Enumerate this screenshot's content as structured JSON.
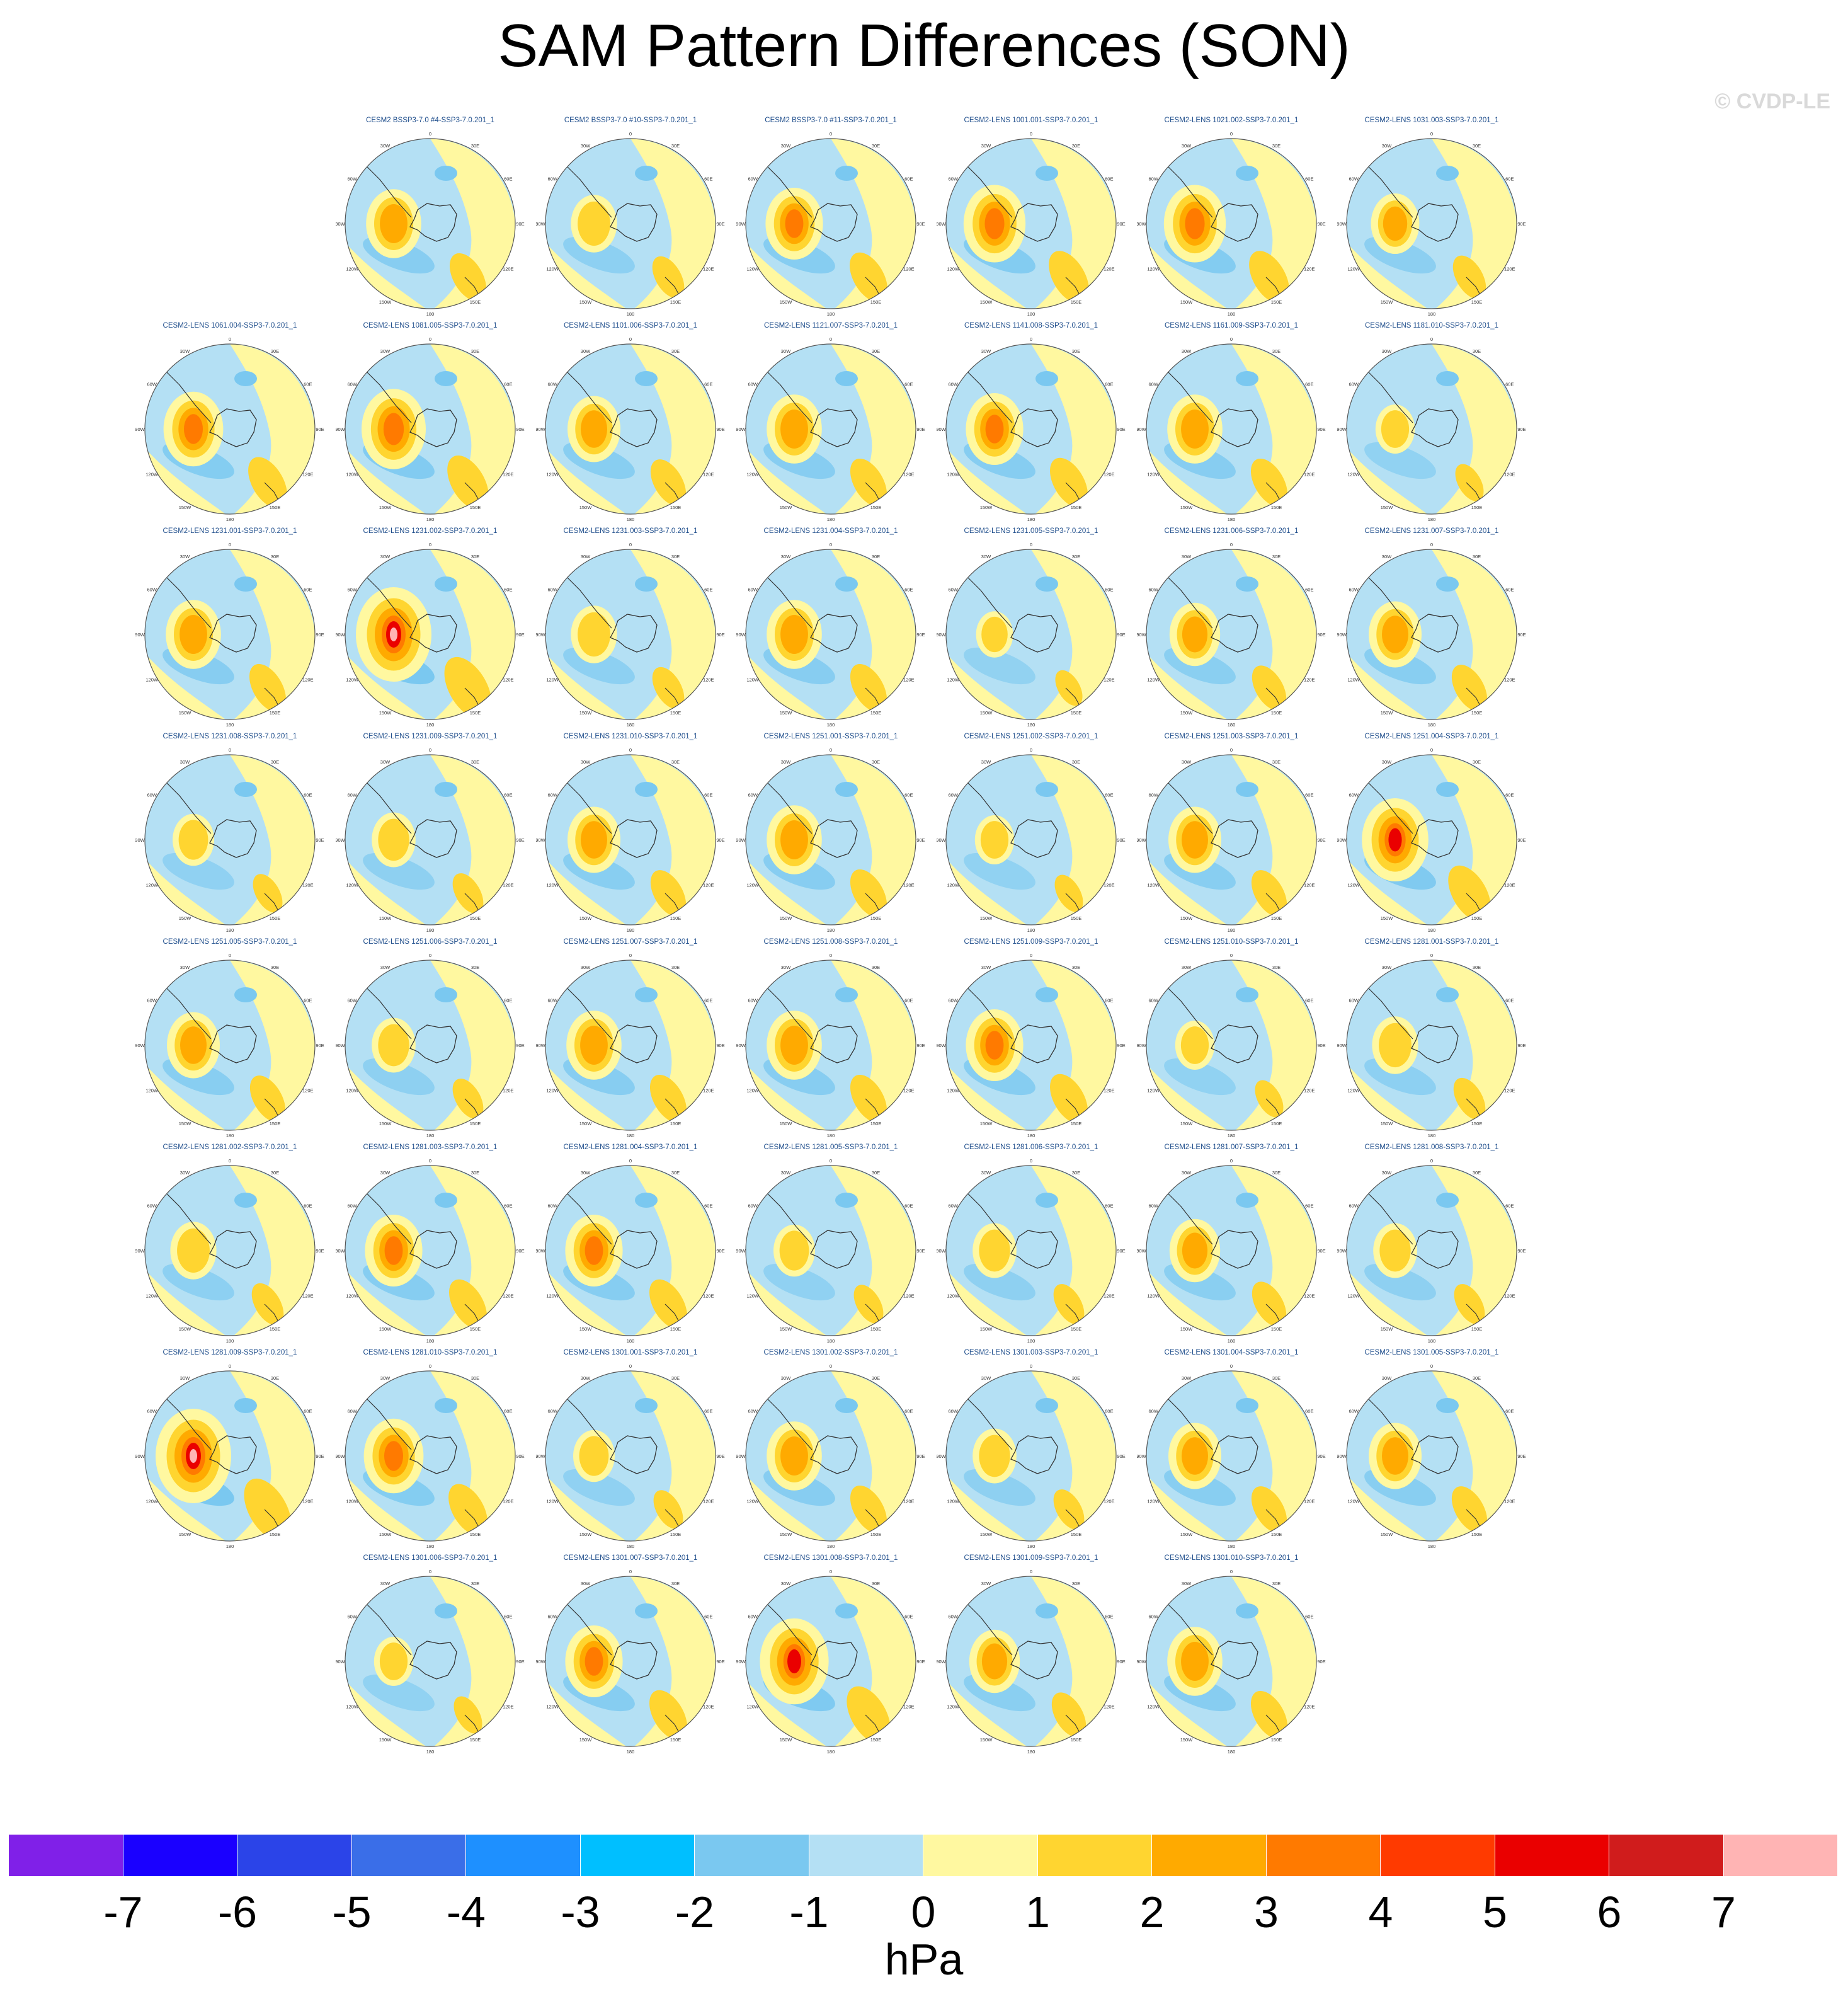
{
  "title": "SAM Pattern Differences (SON)",
  "watermark": "© CVDP-LE",
  "map_lon_labels": [
    "0",
    "30E",
    "60E",
    "90E",
    "120E",
    "150E",
    "180",
    "150W",
    "120W",
    "90W",
    "60W",
    "30W"
  ],
  "panels": [
    {
      "label": "CESM2 BSSP3-7.0 #4-SSP3-7.0.201_1",
      "intensity": 0.55
    },
    {
      "label": "CESM2 BSSP3-7.0 #10-SSP3-7.0.201_1",
      "intensity": 0.35
    },
    {
      "label": "CESM2 BSSP3-7.0 #11-SSP3-7.0.201_1",
      "intensity": 0.6
    },
    {
      "label": "CESM2-LENS 1001.001-SSP3-7.0.201_1",
      "intensity": 0.7
    },
    {
      "label": "CESM2-LENS 1021.002-SSP3-7.0.201_1",
      "intensity": 0.7
    },
    {
      "label": "CESM2-LENS 1031.003-SSP3-7.0.201_1",
      "intensity": 0.4
    },
    {
      "label": "CESM2-LENS 1061.004-SSP3-7.0.201_1",
      "intensity": 0.65
    },
    {
      "label": "CESM2-LENS 1081.005-SSP3-7.0.201_1",
      "intensity": 0.75
    },
    {
      "label": "CESM2-LENS 1101.006-SSP3-7.0.201_1",
      "intensity": 0.5
    },
    {
      "label": "CESM2-LENS 1121.007-SSP3-7.0.201_1",
      "intensity": 0.55
    },
    {
      "label": "CESM2-LENS 1141.008-SSP3-7.0.201_1",
      "intensity": 0.6
    },
    {
      "label": "CESM2-LENS 1161.009-SSP3-7.0.201_1",
      "intensity": 0.55
    },
    {
      "label": "CESM2-LENS 1181.010-SSP3-7.0.201_1",
      "intensity": 0.2
    },
    {
      "label": "CESM2-LENS 1231.001-SSP3-7.0.201_1",
      "intensity": 0.55
    },
    {
      "label": "CESM2-LENS 1231.002-SSP3-7.0.201_1",
      "intensity": 1.0
    },
    {
      "label": "CESM2-LENS 1231.003-SSP3-7.0.201_1",
      "intensity": 0.35
    },
    {
      "label": "CESM2-LENS 1231.004-SSP3-7.0.201_1",
      "intensity": 0.55
    },
    {
      "label": "CESM2-LENS 1231.005-SSP3-7.0.201_1",
      "intensity": 0.15
    },
    {
      "label": "CESM2-LENS 1231.006-SSP3-7.0.201_1",
      "intensity": 0.45
    },
    {
      "label": "CESM2-LENS 1231.007-SSP3-7.0.201_1",
      "intensity": 0.5
    },
    {
      "label": "CESM2-LENS 1231.008-SSP3-7.0.201_1",
      "intensity": 0.25
    },
    {
      "label": "CESM2-LENS 1231.009-SSP3-7.0.201_1",
      "intensity": 0.3
    },
    {
      "label": "CESM2-LENS 1231.010-SSP3-7.0.201_1",
      "intensity": 0.5
    },
    {
      "label": "CESM2-LENS 1251.001-SSP3-7.0.201_1",
      "intensity": 0.55
    },
    {
      "label": "CESM2-LENS 1251.002-SSP3-7.0.201_1",
      "intensity": 0.2
    },
    {
      "label": "CESM2-LENS 1251.003-SSP3-7.0.201_1",
      "intensity": 0.5
    },
    {
      "label": "CESM2-LENS 1251.004-SSP3-7.0.201_1",
      "intensity": 0.8
    },
    {
      "label": "CESM2-LENS 1251.005-SSP3-7.0.201_1",
      "intensity": 0.5
    },
    {
      "label": "CESM2-LENS 1251.006-SSP3-7.0.201_1",
      "intensity": 0.3
    },
    {
      "label": "CESM2-LENS 1251.007-SSP3-7.0.201_1",
      "intensity": 0.55
    },
    {
      "label": "CESM2-LENS 1251.008-SSP3-7.0.201_1",
      "intensity": 0.55
    },
    {
      "label": "CESM2-LENS 1251.009-SSP3-7.0.201_1",
      "intensity": 0.6
    },
    {
      "label": "CESM2-LENS 1251.010-SSP3-7.0.201_1",
      "intensity": 0.2
    },
    {
      "label": "CESM2-LENS 1281.001-SSP3-7.0.201_1",
      "intensity": 0.35
    },
    {
      "label": "CESM2-LENS 1281.002-SSP3-7.0.201_1",
      "intensity": 0.35
    },
    {
      "label": "CESM2-LENS 1281.003-SSP3-7.0.201_1",
      "intensity": 0.6
    },
    {
      "label": "CESM2-LENS 1281.004-SSP3-7.0.201_1",
      "intensity": 0.6
    },
    {
      "label": "CESM2-LENS 1281.005-SSP3-7.0.201_1",
      "intensity": 0.25
    },
    {
      "label": "CESM2-LENS 1281.006-SSP3-7.0.201_1",
      "intensity": 0.3
    },
    {
      "label": "CESM2-LENS 1281.007-SSP3-7.0.201_1",
      "intensity": 0.45
    },
    {
      "label": "CESM2-LENS 1281.008-SSP3-7.0.201_1",
      "intensity": 0.3
    },
    {
      "label": "CESM2-LENS 1281.009-SSP3-7.0.201_1",
      "intensity": 1.0
    },
    {
      "label": "CESM2-LENS 1281.010-SSP3-7.0.201_1",
      "intensity": 0.65
    },
    {
      "label": "CESM2-LENS 1301.001-SSP3-7.0.201_1",
      "intensity": 0.25
    },
    {
      "label": "CESM2-LENS 1301.002-SSP3-7.0.201_1",
      "intensity": 0.55
    },
    {
      "label": "CESM2-LENS 1301.003-SSP3-7.0.201_1",
      "intensity": 0.3
    },
    {
      "label": "CESM2-LENS 1301.004-SSP3-7.0.201_1",
      "intensity": 0.5
    },
    {
      "label": "CESM2-LENS 1301.005-SSP3-7.0.201_1",
      "intensity": 0.5
    },
    {
      "label": "CESM2-LENS 1301.006-SSP3-7.0.201_1",
      "intensity": 0.2
    },
    {
      "label": "CESM2-LENS 1301.007-SSP3-7.0.201_1",
      "intensity": 0.6
    },
    {
      "label": "CESM2-LENS 1301.008-SSP3-7.0.201_1",
      "intensity": 0.85
    },
    {
      "label": "CESM2-LENS 1301.009-SSP3-7.0.201_1",
      "intensity": 0.45
    },
    {
      "label": "CESM2-LENS 1301.010-SSP3-7.0.201_1",
      "intensity": 0.55
    }
  ],
  "colorbar": {
    "units": "hPa",
    "colors": [
      "#8020e8",
      "#1a00ff",
      "#2b44e8",
      "#3a6ee8",
      "#1e90ff",
      "#00bfff",
      "#7ac8f0",
      "#b4e0f4",
      "#fff8a0",
      "#ffd530",
      "#ffaa00",
      "#ff7a00",
      "#ff3a00",
      "#ea0000",
      "#d01c1c",
      "#ffb4b4"
    ],
    "tick_labels": [
      "-7",
      "-6",
      "-5",
      "-4",
      "-3",
      "-2",
      "-1",
      "0",
      "1",
      "2",
      "3",
      "4",
      "5",
      "6",
      "7"
    ]
  }
}
